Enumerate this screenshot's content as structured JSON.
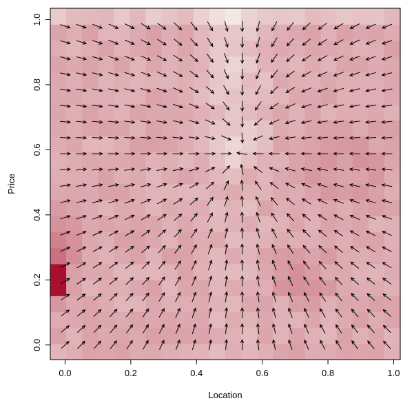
{
  "chart_data": {
    "type": "heatmap",
    "title": "",
    "xlabel": "Location",
    "ylabel": "Price",
    "xlim": [
      -0.045,
      1.02
    ],
    "ylim": [
      -0.045,
      1.035
    ],
    "x_ticks": [
      0.0,
      0.2,
      0.4,
      0.6,
      0.8,
      1.0
    ],
    "x_tick_labels": [
      "0.0",
      "0.2",
      "0.4",
      "0.6",
      "0.8",
      "1.0"
    ],
    "y_ticks": [
      0.0,
      0.2,
      0.4,
      0.6,
      0.8,
      1.0
    ],
    "y_tick_labels": [
      "0.0",
      "0.2",
      "0.4",
      "0.6",
      "0.8",
      "1.0"
    ],
    "grid": false,
    "heatmap": {
      "x_range": [
        -0.045,
        1.02
      ],
      "y_range": [
        -0.045,
        1.035
      ],
      "colors": {
        "low": "#f7f4ef",
        "high": "#a8102e"
      }
    },
    "vector_field": {
      "x_range": [
        0.0,
        0.98
      ],
      "y_range": [
        0.0,
        0.98
      ],
      "n": 21,
      "attractor": [
        0.53,
        0.59
      ],
      "top_convergence_x": 0.54
    }
  }
}
